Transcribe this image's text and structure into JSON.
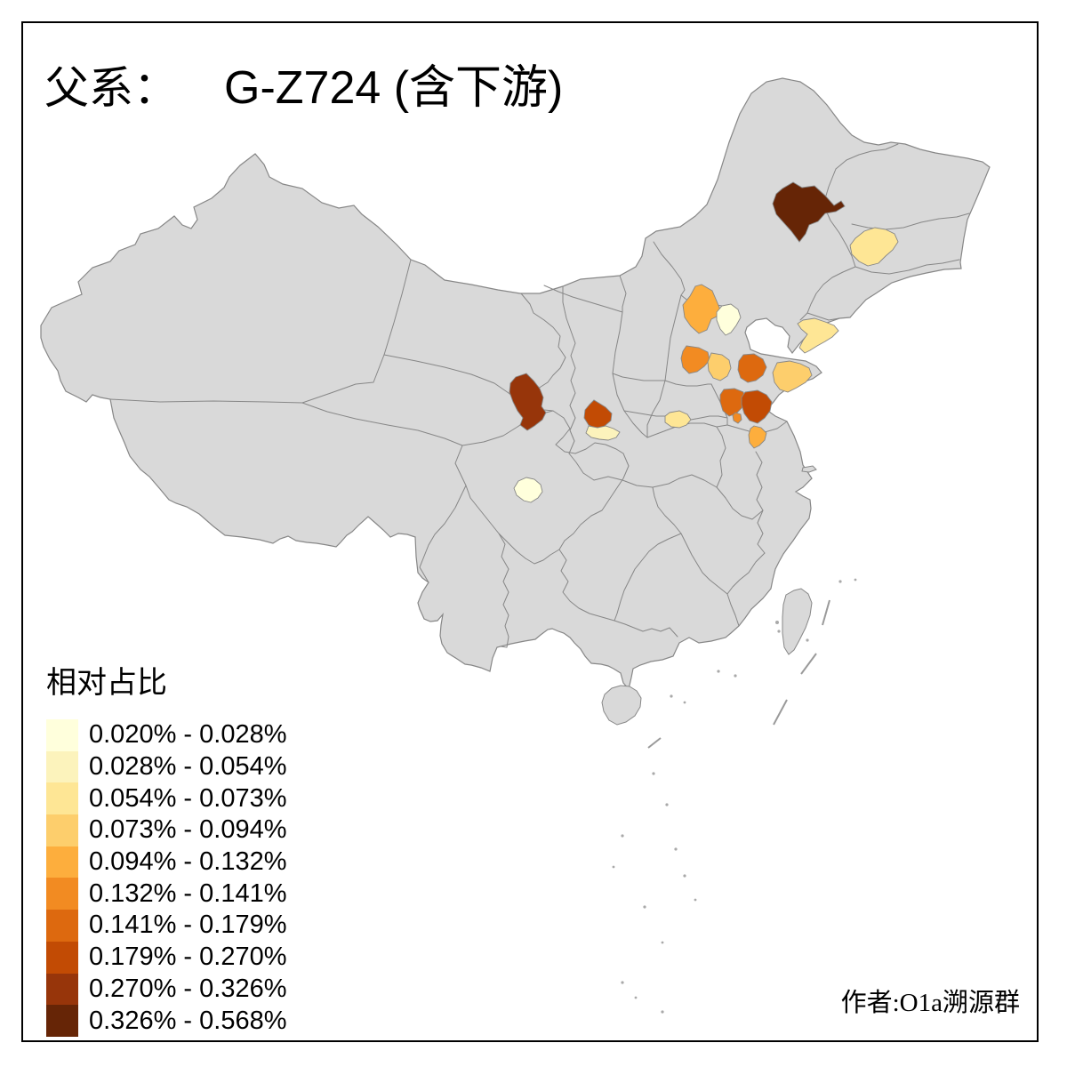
{
  "title": {
    "prefix": "父系：",
    "name": "G-Z724 (含下游)"
  },
  "legend": {
    "title": "相对占比",
    "classes": [
      {
        "range": "0.020% - 0.028%",
        "color": "#FFFFDC"
      },
      {
        "range": "0.028% - 0.054%",
        "color": "#FCF3BC"
      },
      {
        "range": "0.054% - 0.073%",
        "color": "#FEE695"
      },
      {
        "range": "0.073% - 0.094%",
        "color": "#FDCE6C"
      },
      {
        "range": "0.094% - 0.132%",
        "color": "#FDAE3D"
      },
      {
        "range": "0.132% - 0.141%",
        "color": "#F28B22"
      },
      {
        "range": "0.141% - 0.179%",
        "color": "#DD690F"
      },
      {
        "range": "0.179% - 0.270%",
        "color": "#C24B04"
      },
      {
        "range": "0.270% - 0.326%",
        "color": "#97350A"
      },
      {
        "range": "0.326% - 0.568%",
        "color": "#662506"
      }
    ]
  },
  "credit": "作者:O1a溯源群",
  "map": {
    "land_color": "#d9d9d9",
    "border_color": "#878787",
    "sea_color": "#ffffff",
    "frame_color": "#000000",
    "regions": [
      {
        "id": "hinggan-league",
        "class_index": 9
      },
      {
        "id": "central-jilin",
        "class_index": 2
      },
      {
        "id": "zhangjiakou",
        "class_index": 4
      },
      {
        "id": "beijing",
        "class_index": 0
      },
      {
        "id": "dalian",
        "class_index": 2
      },
      {
        "id": "shijiazhuang",
        "class_index": 5
      },
      {
        "id": "hengshui-xingtai",
        "class_index": 3
      },
      {
        "id": "north-shandong",
        "class_index": 6
      },
      {
        "id": "shandong-peninsula",
        "class_index": 3
      },
      {
        "id": "southwest-shandong",
        "class_index": 6
      },
      {
        "id": "south-shandong",
        "class_index": 7
      },
      {
        "id": "zaozhuang",
        "class_index": 5
      },
      {
        "id": "north-jiangsu",
        "class_index": 4
      },
      {
        "id": "zhengzhou",
        "class_index": 2
      },
      {
        "id": "guanzhong-shaanxi",
        "class_index": 7
      },
      {
        "id": "south-shaanxi",
        "class_index": 1
      },
      {
        "id": "central-gansu",
        "class_index": 8
      },
      {
        "id": "chengdu",
        "class_index": 0
      }
    ]
  }
}
